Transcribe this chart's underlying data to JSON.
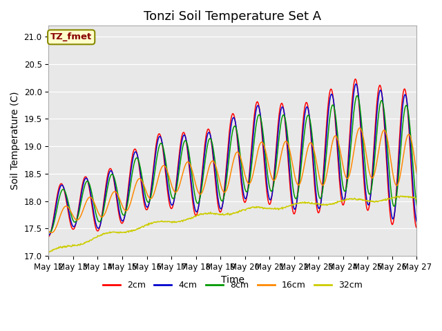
{
  "title": "Tonzi Soil Temperature Set A",
  "xlabel": "Time",
  "ylabel": "Soil Temperature (C)",
  "ylim": [
    17.0,
    21.2
  ],
  "x_tick_labels": [
    "May 12",
    "May 13",
    "May 14",
    "May 15",
    "May 16",
    "May 17",
    "May 18",
    "May 19",
    "May 20",
    "May 21",
    "May 22",
    "May 23",
    "May 24",
    "May 25",
    "May 26",
    "May 27"
  ],
  "legend_labels": [
    "2cm",
    "4cm",
    "8cm",
    "16cm",
    "32cm"
  ],
  "legend_colors": [
    "#ff0000",
    "#0000cc",
    "#009900",
    "#ff8800",
    "#cccc00"
  ],
  "annotation_text": "TZ_fmet",
  "annotation_color": "#880000",
  "annotation_bg": "#ffffcc",
  "annotation_edge": "#888800",
  "background_color": "#e8e8e8",
  "title_fontsize": 13,
  "axis_label_fontsize": 10,
  "tick_fontsize": 8.5,
  "legend_fontsize": 9,
  "linewidth": 1.1
}
